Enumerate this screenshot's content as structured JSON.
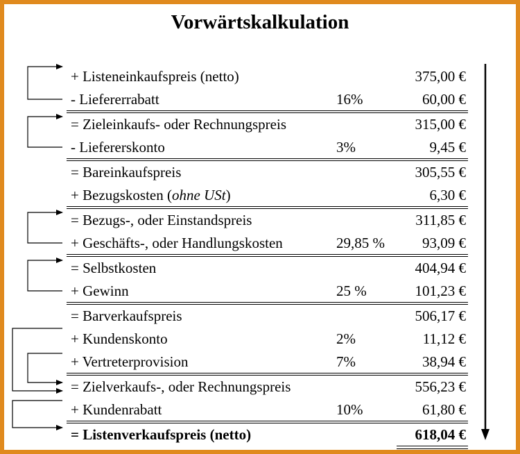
{
  "title": "Vorwärtskalkulation",
  "colors": {
    "frame": "#e08a1e"
  },
  "rows": [
    {
      "label": "+ Listeneinkaufspreis (netto)",
      "percent": "",
      "amount": "375,00 €"
    },
    {
      "label": "- Liefererrabatt",
      "percent": "16%",
      "amount": "60,00 €"
    },
    {
      "label": "= Zieleinkaufs- oder Rechnungspreis",
      "percent": "",
      "amount": "315,00 €"
    },
    {
      "label": "- Liefererskonto",
      "percent": "3%",
      "amount": "9,45 €"
    },
    {
      "label": "= Bareinkaufspreis",
      "percent": "",
      "amount": "305,55 €"
    },
    {
      "label_main": "+ Bezugskosten (",
      "label_italic": "ohne USt",
      "label_end": ")",
      "percent": "",
      "amount": "6,30 €"
    },
    {
      "label": "= Bezugs-, oder Einstandspreis",
      "percent": "",
      "amount": "311,85 €"
    },
    {
      "label": "+ Geschäfts-, oder Handlungskosten",
      "percent": "29,85 %",
      "amount": "93,09 €"
    },
    {
      "label": "= Selbstkosten",
      "percent": "",
      "amount": "404,94 €"
    },
    {
      "label": "+ Gewinn",
      "percent": "25 %",
      "amount": "101,23 €"
    },
    {
      "label": "= Barverkaufspreis",
      "percent": "",
      "amount": "506,17 €"
    },
    {
      "label": "+ Kundenskonto",
      "percent": "2%",
      "amount": "11,12 €"
    },
    {
      "label": "+ Vertreterprovision",
      "percent": "7%",
      "amount": "38,94 €"
    },
    {
      "label": "= Zielverkaufs-, oder Rechnungspreis",
      "percent": "",
      "amount": "556,23 €"
    },
    {
      "label": "+ Kundenrabatt",
      "percent": "10%",
      "amount": "61,80 €"
    },
    {
      "label": "= Listenverkaufspreis (netto)",
      "percent": "",
      "amount": "618,04 €"
    }
  ]
}
